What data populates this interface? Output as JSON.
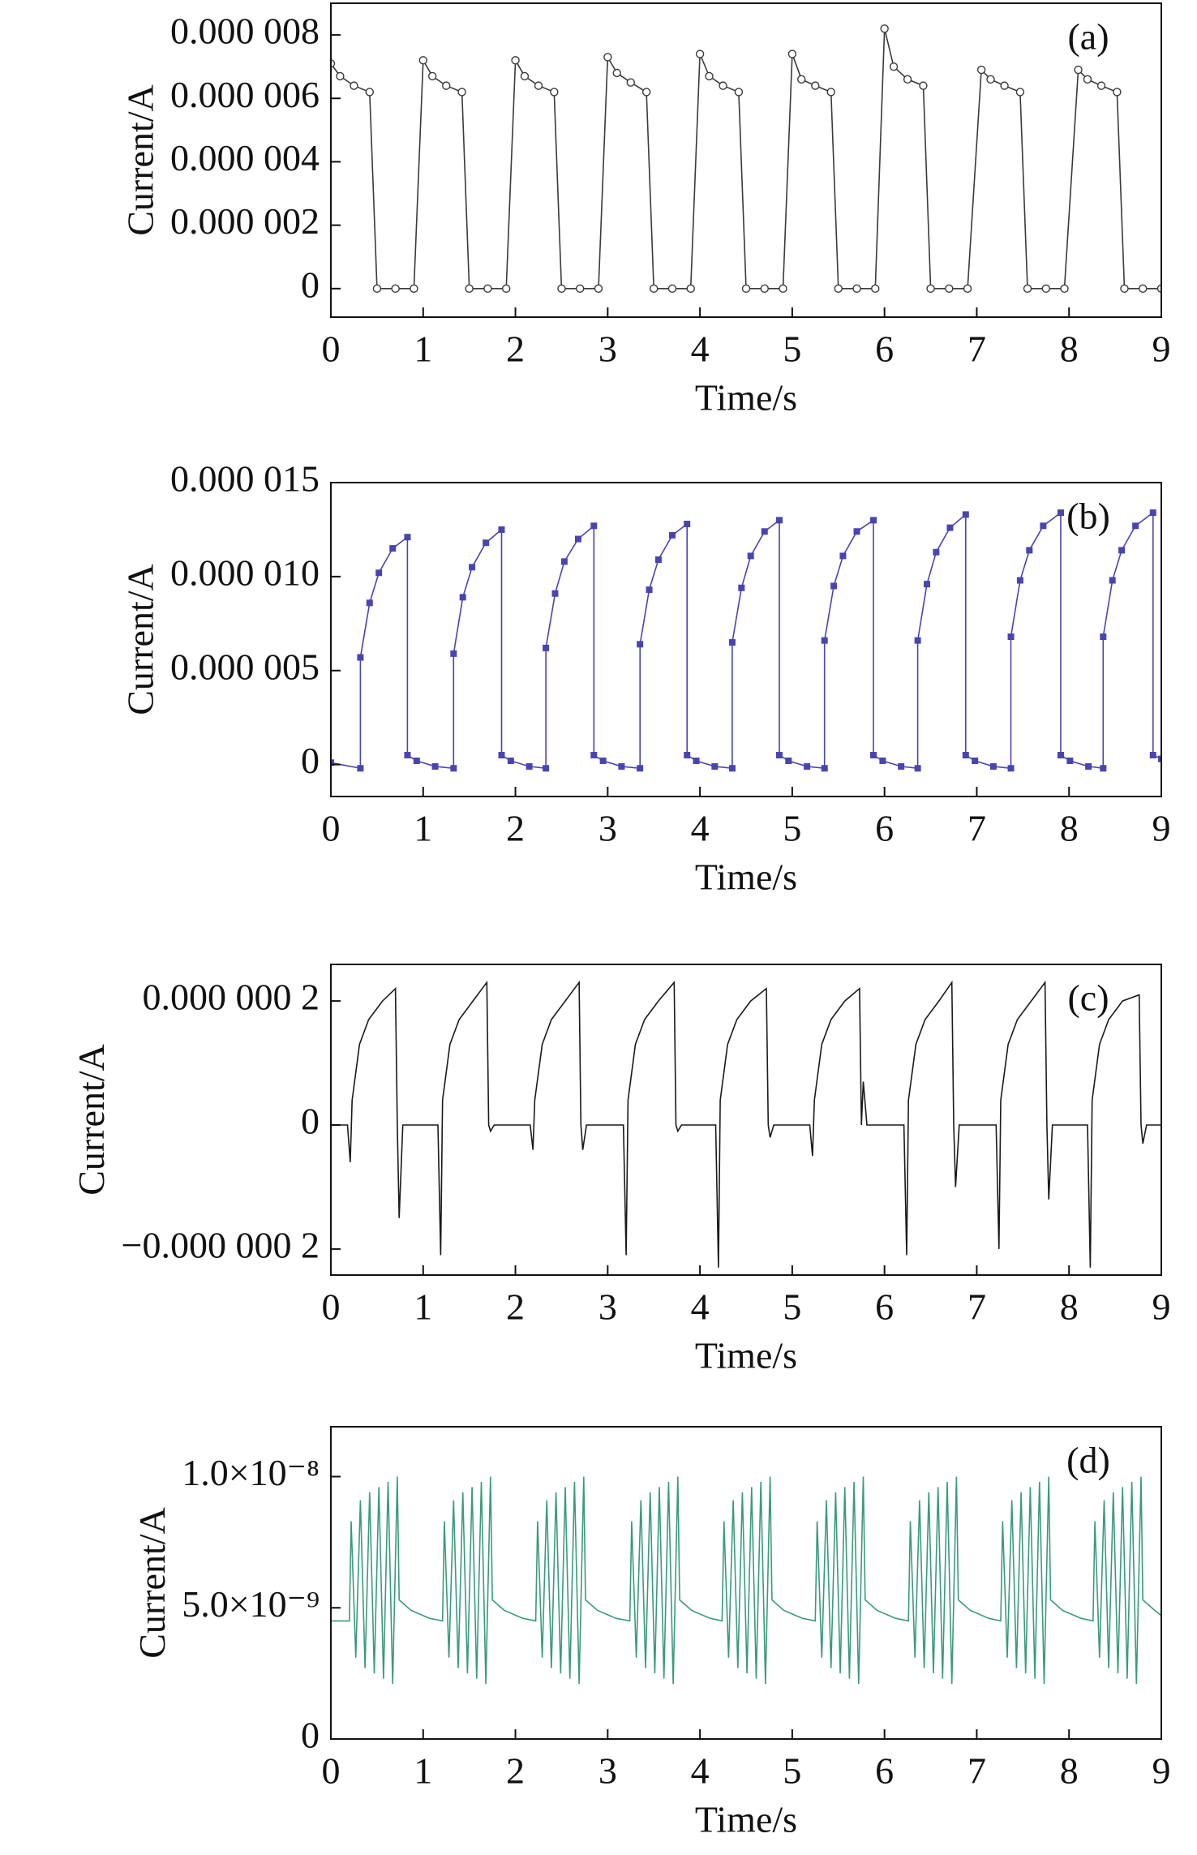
{
  "chart_data": [
    {
      "type": "line",
      "annotation": "(a)",
      "xlabel": "Time/s",
      "ylabel": "Current/A",
      "color": "#3a3a3a",
      "marker": "circle",
      "xlim": [
        0,
        9
      ],
      "xticks": [
        0,
        1,
        2,
        3,
        4,
        5,
        6,
        7,
        8,
        9
      ],
      "ylim": [
        -9e-07,
        9e-06
      ],
      "yticks": [
        0,
        {
          "value": 2e-06,
          "label": "0.000 002"
        },
        {
          "value": 4e-06,
          "label": "0.000 004"
        },
        {
          "value": 6e-06,
          "label": "0.000 006"
        },
        {
          "value": 8e-06,
          "label": "0.000 008"
        }
      ],
      "x": [
        0,
        0.1,
        0.25,
        0.42,
        0.5,
        0.7,
        0.9,
        1.0,
        1.1,
        1.25,
        1.42,
        1.5,
        1.7,
        1.9,
        2.0,
        2.1,
        2.25,
        2.42,
        2.5,
        2.7,
        2.9,
        3.0,
        3.1,
        3.25,
        3.42,
        3.5,
        3.7,
        3.9,
        4.0,
        4.1,
        4.25,
        4.42,
        4.5,
        4.7,
        4.9,
        5.0,
        5.1,
        5.25,
        5.42,
        5.5,
        5.7,
        5.9,
        6.0,
        6.1,
        6.25,
        6.42,
        6.5,
        6.7,
        6.9,
        7.05,
        7.15,
        7.3,
        7.47,
        7.55,
        7.75,
        7.95,
        8.1,
        8.2,
        8.35,
        8.52,
        8.6,
        8.8,
        9.0
      ],
      "values": [
        7.1e-06,
        6.7e-06,
        6.4e-06,
        6.2e-06,
        0,
        0,
        0,
        7.2e-06,
        6.7e-06,
        6.4e-06,
        6.2e-06,
        0,
        0,
        0,
        7.2e-06,
        6.7e-06,
        6.4e-06,
        6.2e-06,
        0,
        0,
        0,
        7.3e-06,
        6.8e-06,
        6.5e-06,
        6.2e-06,
        0,
        0,
        0,
        7.4e-06,
        6.7e-06,
        6.4e-06,
        6.2e-06,
        0,
        0,
        0,
        7.4e-06,
        6.6e-06,
        6.4e-06,
        6.2e-06,
        0,
        0,
        0,
        8.2e-06,
        7e-06,
        6.6e-06,
        6.4e-06,
        0,
        0,
        0,
        6.9e-06,
        6.6e-06,
        6.4e-06,
        6.2e-06,
        0,
        0,
        0,
        6.9e-06,
        6.6e-06,
        6.4e-06,
        6.2e-06,
        0,
        0,
        0
      ]
    },
    {
      "type": "line",
      "annotation": "(b)",
      "xlabel": "Time/s",
      "ylabel": "Current/A",
      "color": "#4a44b0",
      "marker": "square",
      "xlim": [
        0,
        9
      ],
      "xticks": [
        0,
        1,
        2,
        3,
        4,
        5,
        6,
        7,
        8,
        9
      ],
      "ylim": [
        -1.7e-06,
        1.5e-05
      ],
      "yticks": [
        0,
        {
          "value": 5e-06,
          "label": "0.000 005"
        },
        {
          "value": 1e-05,
          "label": "0.000 010"
        },
        {
          "value": 1.5e-05,
          "label": "0.000 015"
        }
      ],
      "x": [
        0,
        0.32,
        0.32,
        0.42,
        0.52,
        0.67,
        0.83,
        0.83,
        0.93,
        1.13,
        1.33,
        1.33,
        1.43,
        1.53,
        1.68,
        1.85,
        1.85,
        1.95,
        2.15,
        2.33,
        2.33,
        2.43,
        2.53,
        2.68,
        2.85,
        2.85,
        2.95,
        3.15,
        3.35,
        3.35,
        3.45,
        3.55,
        3.7,
        3.86,
        3.86,
        3.96,
        4.16,
        4.35,
        4.35,
        4.45,
        4.55,
        4.7,
        4.86,
        4.86,
        4.96,
        5.16,
        5.35,
        5.35,
        5.45,
        5.55,
        5.7,
        5.88,
        5.88,
        5.98,
        6.18,
        6.36,
        6.36,
        6.46,
        6.56,
        6.71,
        6.88,
        6.88,
        6.98,
        7.18,
        7.37,
        7.37,
        7.47,
        7.57,
        7.72,
        7.91,
        7.91,
        8.01,
        8.21,
        8.37,
        8.37,
        8.47,
        8.57,
        8.72,
        8.91,
        8.91,
        9.0
      ],
      "values": [
        1e-07,
        -2e-07,
        5.7e-06,
        8.6e-06,
        1.02e-05,
        1.15e-05,
        1.21e-05,
        5e-07,
        2e-07,
        -1e-07,
        -2e-07,
        5.9e-06,
        8.9e-06,
        1.05e-05,
        1.18e-05,
        1.25e-05,
        5e-07,
        2e-07,
        -1e-07,
        -2e-07,
        6.2e-06,
        9.1e-06,
        1.08e-05,
        1.2e-05,
        1.27e-05,
        5e-07,
        2e-07,
        -1e-07,
        -2e-07,
        6.4e-06,
        9.3e-06,
        1.09e-05,
        1.22e-05,
        1.28e-05,
        5e-07,
        2e-07,
        -1e-07,
        -2e-07,
        6.5e-06,
        9.4e-06,
        1.11e-05,
        1.24e-05,
        1.3e-05,
        5e-07,
        2e-07,
        -1e-07,
        -2e-07,
        6.6e-06,
        9.5e-06,
        1.11e-05,
        1.24e-05,
        1.3e-05,
        5e-07,
        2e-07,
        -1e-07,
        -2e-07,
        6.6e-06,
        9.6e-06,
        1.13e-05,
        1.26e-05,
        1.33e-05,
        5e-07,
        2e-07,
        -1e-07,
        -2e-07,
        6.8e-06,
        9.8e-06,
        1.14e-05,
        1.27e-05,
        1.34e-05,
        5e-07,
        2e-07,
        -1e-07,
        -2e-07,
        6.8e-06,
        9.8e-06,
        1.14e-05,
        1.27e-05,
        1.34e-05,
        5e-07,
        3e-07
      ]
    },
    {
      "type": "line",
      "annotation": "(c)",
      "xlabel": "Time/s",
      "ylabel": "Current/A",
      "color": "#1a1a1a",
      "xlim": [
        0,
        9
      ],
      "xticks": [
        0,
        1,
        2,
        3,
        4,
        5,
        6,
        7,
        8,
        9
      ],
      "ylim": [
        -2.42e-07,
        2.59e-07
      ],
      "yticks": [
        {
          "value": -2e-07,
          "label": "−0.000 000 2"
        },
        0,
        {
          "value": 2e-07,
          "label": "0.000 000 2"
        }
      ],
      "x": [
        0,
        0.18,
        0.21,
        0.23,
        0.31,
        0.41,
        0.56,
        0.7,
        0.72,
        0.74,
        0.78,
        1.16,
        1.19,
        1.21,
        1.29,
        1.39,
        1.54,
        1.69,
        1.71,
        1.73,
        1.77,
        2.16,
        2.19,
        2.21,
        2.29,
        2.39,
        2.54,
        2.69,
        2.71,
        2.73,
        2.77,
        3.17,
        3.2,
        3.22,
        3.3,
        3.4,
        3.55,
        3.72,
        3.74,
        3.76,
        3.8,
        4.17,
        4.2,
        4.22,
        4.3,
        4.4,
        4.55,
        4.72,
        4.74,
        4.76,
        4.8,
        5.19,
        5.22,
        5.24,
        5.32,
        5.42,
        5.57,
        5.73,
        5.75,
        5.77,
        5.81,
        6.21,
        6.24,
        6.26,
        6.34,
        6.44,
        6.59,
        6.73,
        6.75,
        6.77,
        6.81,
        7.21,
        7.24,
        7.26,
        7.34,
        7.44,
        7.59,
        7.74,
        7.76,
        7.78,
        7.82,
        8.2,
        8.23,
        8.25,
        8.33,
        8.43,
        8.58,
        8.76,
        8.78,
        8.8,
        8.84,
        9.0
      ],
      "values": [
        0,
        0,
        -6e-08,
        4e-08,
        1.3e-07,
        1.7e-07,
        2e-07,
        2.2e-07,
        0,
        -1.5e-07,
        0,
        0,
        -2.1e-07,
        4e-08,
        1.3e-07,
        1.7e-07,
        2e-07,
        2.3e-07,
        0,
        -1e-08,
        0,
        0,
        -4e-08,
        4e-08,
        1.3e-07,
        1.7e-07,
        2e-07,
        2.3e-07,
        0,
        -4e-08,
        0,
        0,
        -2.1e-07,
        4e-08,
        1.3e-07,
        1.7e-07,
        2e-07,
        2.3e-07,
        0,
        -1e-08,
        0,
        0,
        -2.3e-07,
        4e-08,
        1.3e-07,
        1.7e-07,
        2e-07,
        2.2e-07,
        0,
        -2e-08,
        0,
        0,
        -5e-08,
        4e-08,
        1.3e-07,
        1.7e-07,
        2e-07,
        2.2e-07,
        0,
        7e-08,
        0,
        0,
        -2.1e-07,
        4e-08,
        1.3e-07,
        1.7e-07,
        2e-07,
        2.3e-07,
        0,
        -1e-07,
        0,
        0,
        -2e-07,
        4e-08,
        1.3e-07,
        1.7e-07,
        2e-07,
        2.3e-07,
        0,
        -1.2e-07,
        0,
        0,
        -2.3e-07,
        4e-08,
        1.3e-07,
        1.7e-07,
        2e-07,
        2.1e-07,
        0,
        -3e-08,
        0,
        0
      ]
    },
    {
      "type": "line",
      "annotation": "(d)",
      "xlabel": "Time/s",
      "ylabel": "Current/A",
      "color": "#3a9a7e",
      "xlim": [
        0,
        9
      ],
      "xticks": [
        0,
        1,
        2,
        3,
        4,
        5,
        6,
        7,
        8,
        9
      ],
      "ylim": [
        0,
        1.19e-08
      ],
      "yticks": [
        0,
        {
          "value": 5e-09,
          "label": "5.0×10⁻⁹"
        },
        {
          "value": 1e-08,
          "label": "1.0×10⁻⁸"
        }
      ],
      "x": [
        0,
        0.2,
        0.22,
        0.27,
        0.32,
        0.37,
        0.42,
        0.47,
        0.52,
        0.57,
        0.62,
        0.67,
        0.72,
        0.74,
        0.87,
        1.07,
        1.21,
        1.23,
        1.28,
        1.33,
        1.38,
        1.43,
        1.48,
        1.53,
        1.58,
        1.63,
        1.68,
        1.73,
        1.75,
        1.88,
        2.08,
        2.22,
        2.24,
        2.29,
        2.34,
        2.39,
        2.44,
        2.49,
        2.54,
        2.59,
        2.64,
        2.69,
        2.74,
        2.76,
        2.89,
        3.09,
        3.24,
        3.26,
        3.31,
        3.36,
        3.41,
        3.46,
        3.51,
        3.56,
        3.61,
        3.66,
        3.71,
        3.76,
        3.78,
        3.91,
        4.11,
        4.24,
        4.26,
        4.31,
        4.36,
        4.41,
        4.46,
        4.51,
        4.56,
        4.61,
        4.66,
        4.71,
        4.76,
        4.78,
        4.91,
        5.11,
        5.25,
        5.27,
        5.32,
        5.37,
        5.42,
        5.47,
        5.52,
        5.57,
        5.62,
        5.67,
        5.72,
        5.77,
        5.79,
        5.92,
        6.12,
        6.26,
        6.28,
        6.33,
        6.38,
        6.43,
        6.48,
        6.53,
        6.58,
        6.63,
        6.68,
        6.73,
        6.78,
        6.8,
        6.93,
        7.13,
        7.26,
        7.28,
        7.33,
        7.38,
        7.43,
        7.48,
        7.53,
        7.58,
        7.63,
        7.68,
        7.73,
        7.78,
        7.8,
        7.93,
        8.13,
        8.26,
        8.28,
        8.33,
        8.38,
        8.43,
        8.48,
        8.53,
        8.58,
        8.63,
        8.68,
        8.73,
        8.78,
        8.8,
        8.93,
        9.0
      ],
      "values": [
        4.5e-09,
        4.5e-09,
        8.3e-09,
        3.1e-09,
        9.1e-09,
        2.7e-09,
        9.4e-09,
        2.5e-09,
        9.6e-09,
        2.3e-09,
        9.8e-09,
        2.1e-09,
        1e-08,
        5.3e-09,
        4.9e-09,
        4.6e-09,
        4.5e-09,
        8.3e-09,
        3.1e-09,
        9.1e-09,
        2.7e-09,
        9.4e-09,
        2.5e-09,
        9.6e-09,
        2.3e-09,
        9.8e-09,
        2.1e-09,
        1e-08,
        5.3e-09,
        4.9e-09,
        4.6e-09,
        4.5e-09,
        8.3e-09,
        3.1e-09,
        9.1e-09,
        2.7e-09,
        9.4e-09,
        2.5e-09,
        9.6e-09,
        2.3e-09,
        9.8e-09,
        2.1e-09,
        1e-08,
        5.3e-09,
        4.9e-09,
        4.6e-09,
        4.5e-09,
        8.3e-09,
        3.1e-09,
        9.1e-09,
        2.7e-09,
        9.4e-09,
        2.5e-09,
        9.6e-09,
        2.3e-09,
        9.8e-09,
        2.1e-09,
        1e-08,
        5.3e-09,
        4.9e-09,
        4.6e-09,
        4.5e-09,
        8.3e-09,
        3.1e-09,
        9.1e-09,
        2.7e-09,
        9.4e-09,
        2.5e-09,
        9.6e-09,
        2.3e-09,
        9.8e-09,
        2.1e-09,
        1e-08,
        5.3e-09,
        4.9e-09,
        4.6e-09,
        4.5e-09,
        8.3e-09,
        3.1e-09,
        9.1e-09,
        2.7e-09,
        9.4e-09,
        2.5e-09,
        9.6e-09,
        2.3e-09,
        9.8e-09,
        2.1e-09,
        1e-08,
        5.3e-09,
        4.9e-09,
        4.6e-09,
        4.5e-09,
        8.3e-09,
        3.1e-09,
        9.1e-09,
        2.7e-09,
        9.4e-09,
        2.5e-09,
        9.6e-09,
        2.3e-09,
        9.8e-09,
        2.1e-09,
        1e-08,
        5.3e-09,
        4.9e-09,
        4.6e-09,
        4.5e-09,
        8.3e-09,
        3.1e-09,
        9.1e-09,
        2.7e-09,
        9.4e-09,
        2.5e-09,
        9.6e-09,
        2.3e-09,
        9.8e-09,
        2.1e-09,
        1e-08,
        5.3e-09,
        4.9e-09,
        4.6e-09,
        4.5e-09,
        8.3e-09,
        3.1e-09,
        9.1e-09,
        2.7e-09,
        9.4e-09,
        2.5e-09,
        9.6e-09,
        2.3e-09,
        9.8e-09,
        2.1e-09,
        1e-08,
        5.3e-09,
        4.9e-09,
        4.7e-09
      ]
    }
  ]
}
